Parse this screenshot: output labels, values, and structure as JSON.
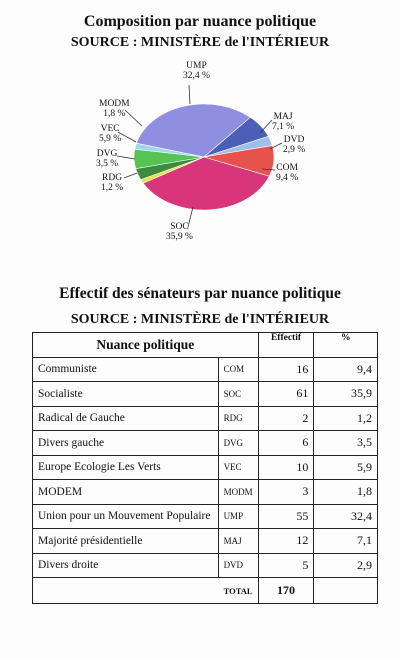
{
  "chart_title": "Composition par nuance politique",
  "chart_source": "SOURCE : MINISTÈRE de l'INTÉRIEUR",
  "table_title": "Effectif des sénateurs par nuance politique",
  "table_source": "SOURCE : MINISTÈRE de l'INTÉRIEUR",
  "chart_data": {
    "type": "pie",
    "slices": [
      {
        "label": "UMP",
        "pct_text": "32,4 %",
        "value": 32.4,
        "color": "#8f8ee0"
      },
      {
        "label": "MAJ",
        "pct_text": "7,1 %",
        "value": 7.1,
        "color": "#4a5fb5"
      },
      {
        "label": "DVD",
        "pct_text": "2,9 %",
        "value": 2.9,
        "color": "#9ec0e8"
      },
      {
        "label": "COM",
        "pct_text": "9,4 %",
        "value": 9.4,
        "color": "#e8524d"
      },
      {
        "label": "SOC",
        "pct_text": "35,9 %",
        "value": 35.9,
        "color": "#d8357a"
      },
      {
        "label": "RDG",
        "pct_text": "1,2 %",
        "value": 1.2,
        "color": "#e8e24a"
      },
      {
        "label": "DVG",
        "pct_text": "3,5 %",
        "value": 3.5,
        "color": "#3e8a3e"
      },
      {
        "label": "VEC",
        "pct_text": "5,9 %",
        "value": 5.9,
        "color": "#55c455"
      },
      {
        "label": "MODM",
        "pct_text": "1,8 %",
        "value": 1.8,
        "color": "#9fd8ec"
      }
    ]
  },
  "table": {
    "header": {
      "nuance": "Nuance politique",
      "effectif": "Effectif",
      "pct": "%"
    },
    "rows": [
      {
        "name": "Communiste",
        "code": "COM",
        "effectif": "16",
        "pct": "9,4"
      },
      {
        "name": "Socialiste",
        "code": "SOC",
        "effectif": "61",
        "pct": "35,9"
      },
      {
        "name": "Radical de Gauche",
        "code": "RDG",
        "effectif": "2",
        "pct": "1,2"
      },
      {
        "name": "Divers gauche",
        "code": "DVG",
        "effectif": "6",
        "pct": "3,5"
      },
      {
        "name": "Europe Ecologie Les Verts",
        "code": "VEC",
        "effectif": "10",
        "pct": "5,9"
      },
      {
        "name": "MODEM",
        "code": "MODM",
        "effectif": "3",
        "pct": "1,8"
      },
      {
        "name": "Union pour un Mouvement Populaire",
        "code": "UMP",
        "effectif": "55",
        "pct": "32,4"
      },
      {
        "name": "Majorité présidentielle",
        "code": "MAJ",
        "effectif": "12",
        "pct": "7,1"
      },
      {
        "name": "Divers droite",
        "code": "DVD",
        "effectif": "5",
        "pct": "2,9"
      }
    ],
    "total_label": "TOTAL",
    "total_value": "170"
  }
}
